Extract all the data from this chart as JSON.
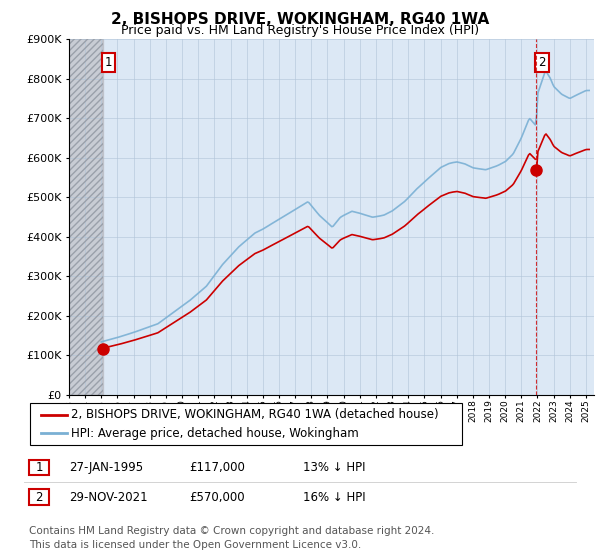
{
  "title": "2, BISHOPS DRIVE, WOKINGHAM, RG40 1WA",
  "subtitle": "Price paid vs. HM Land Registry's House Price Index (HPI)",
  "footer": "Contains HM Land Registry data © Crown copyright and database right 2024.\nThis data is licensed under the Open Government Licence v3.0.",
  "legend_line1": "2, BISHOPS DRIVE, WOKINGHAM, RG40 1WA (detached house)",
  "legend_line2": "HPI: Average price, detached house, Wokingham",
  "sale1_date": "27-JAN-1995",
  "sale1_price": "£117,000",
  "sale1_hpi": "13% ↓ HPI",
  "sale1_year": 1995.08,
  "sale1_value": 117000,
  "sale2_date": "29-NOV-2021",
  "sale2_price": "£570,000",
  "sale2_hpi": "16% ↓ HPI",
  "sale2_year": 2021.92,
  "sale2_value": 570000,
  "ylim": [
    0,
    900000
  ],
  "xlim_start": 1993.0,
  "xlim_end": 2025.5,
  "hatch_end_year": 1995.08,
  "red_color": "#cc0000",
  "blue_color": "#7ab0d4",
  "background_color": "#ffffff",
  "plot_bg_color": "#dce8f5",
  "hatch_bg_color": "#c8ccd4",
  "grid_color": "#b0c4d8",
  "title_fontsize": 11,
  "subtitle_fontsize": 9,
  "axis_fontsize": 8,
  "legend_fontsize": 8.5,
  "footer_fontsize": 7.5
}
